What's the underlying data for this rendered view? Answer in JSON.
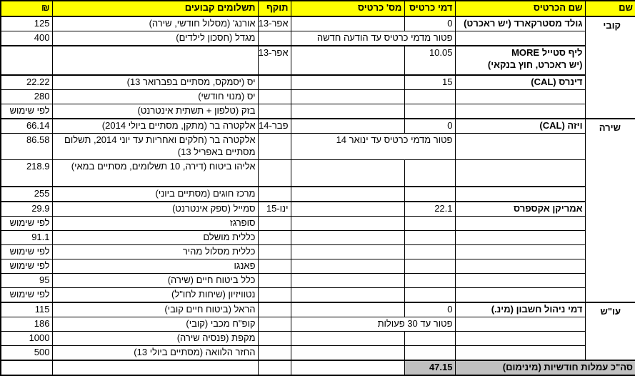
{
  "header": {
    "name": "שם",
    "card_name": "שם הכרטיס",
    "card_fee": "דמי כרטיס",
    "card_number": "מס' כרטיס",
    "expiry": "תוקף",
    "payments": "תשלומים קבועים",
    "amount": "₪"
  },
  "groups": [
    {
      "name": "קובי",
      "rows": [
        {
          "card_name": "גולד מסטרקארד (יש ראכרט)",
          "card_fee": "0",
          "expiry": "אפר-13",
          "payment": "אורנג' (מסלול חודשי, שירה)",
          "amount": "125"
        },
        {
          "note": "פטור מדמי כרטיס עד הודעה חדשה",
          "payment": "מגדל (חסכון לילדים)",
          "amount": "400"
        },
        {
          "card_name": "ליף סטייל MORE\n(יש ראכרט, חוץ בנקאי)",
          "card_fee": "10.05",
          "expiry": "אפר-13"
        },
        {
          "card_name": "דינרס (CAL)",
          "card_fee": "15",
          "payment": "יס  (יסמקס, מסתיים בפברואר 13)",
          "amount": "22.22"
        },
        {
          "payment": "יס (מנוי חודשי)",
          "amount": "280"
        },
        {
          "payment": "בזק (טלפון + תשתית אינטרנט)",
          "amount": "לפי שימוש"
        }
      ]
    },
    {
      "name": "שירה",
      "rows": [
        {
          "card_name": "ויזה (CAL)",
          "card_fee": "0",
          "expiry": "פבר-14",
          "payment": "אלקטרה בר (מתקן, מסתיים ביולי 2014)",
          "amount": "66.14"
        },
        {
          "note": "פטור מדמי כרטיס עד ינואר 14",
          "payment": "אלקטרה בר (חלקים ואחריות עד יוני 2014, תשלום מסתיים באפריל 13)",
          "amount": "86.58"
        },
        {
          "payment": "אליהו ביטוח (דירה, 10 תשלומים, מסתיים במאי)",
          "amount": "218.9"
        },
        {
          "payment": "מרכז חוגים (מסתיים ביוני)",
          "amount": "255"
        },
        {
          "card_name": "אמריקן אקספרס",
          "card_fee": "22.1",
          "expiry": "ינו-15",
          "payment": "סמייל (ספק אינטרנט)",
          "amount": "29.9"
        },
        {
          "payment": "סופרגז",
          "amount": "לפי שימוש"
        },
        {
          "payment": "כללית מושלם",
          "amount": "91.1"
        },
        {
          "payment": "כללית מסלול מהיר",
          "amount": "לפי שימוש"
        },
        {
          "payment": "פאנגו",
          "amount": "לפי שימוש"
        },
        {
          "payment": "כלל ביטוח חיים (שירה)",
          "amount": "95"
        },
        {
          "payment": "נטוויזיון (שיחות לחו\"ל)",
          "amount": "לפי שימוש"
        }
      ]
    },
    {
      "name": "עו\"ש",
      "rows": [
        {
          "card_name": "דמי ניהול חשבון (מינ.)",
          "card_fee": "0",
          "payment": "הראל (ביטוח חיים קובי)",
          "amount": "115"
        },
        {
          "note": "פטור עד 30 פעולות",
          "payment": "קופ\"ח מכבי (קובי)",
          "amount": "186"
        },
        {
          "payment": "מקפת (פנסיה שירה)",
          "amount": "1000"
        },
        {
          "payment": "החזר הלוואה (מסתיים ביולי 13)",
          "amount": "500"
        }
      ]
    }
  ],
  "total": {
    "label": "סה\"כ עמלות חודשיות (מינימום)",
    "value": "47.15"
  },
  "colors": {
    "header": "#ffff00",
    "total": "#c0c0c0"
  }
}
